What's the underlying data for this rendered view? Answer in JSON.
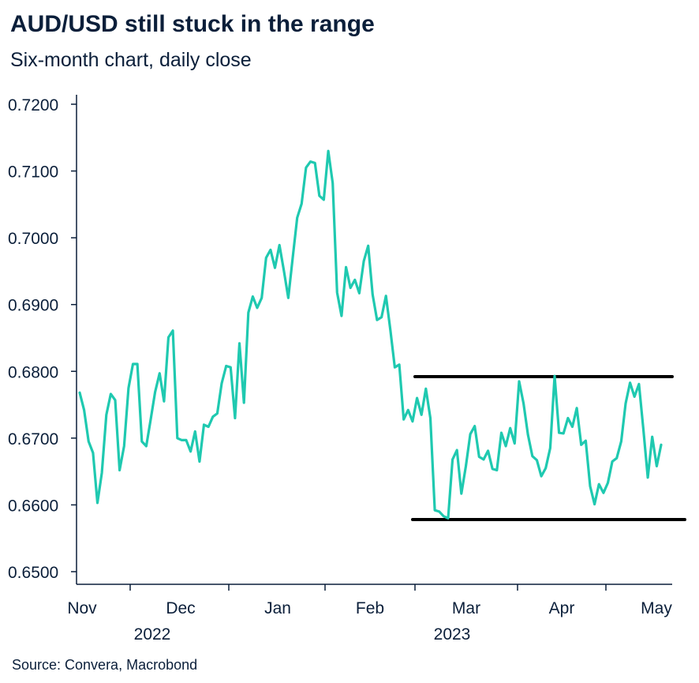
{
  "title": "AUD/USD still stuck in the range",
  "subtitle": "Six-month chart, daily close",
  "source": "Source: Convera, Macrobond",
  "chart_data": {
    "type": "line",
    "ylim": [
      0.65,
      0.72
    ],
    "y_ticks": [
      "0.7200",
      "0.7100",
      "0.7000",
      "0.6900",
      "0.6800",
      "0.6700",
      "0.6600",
      "0.6500"
    ],
    "y_tick_values": [
      0.72,
      0.71,
      0.7,
      0.69,
      0.68,
      0.67,
      0.66,
      0.65
    ],
    "x_month_labels": [
      "Nov",
      "Dec",
      "Jan",
      "Feb",
      "Mar",
      "Apr",
      "May"
    ],
    "x_year_labels": [
      "2022",
      "2023"
    ],
    "grid": false,
    "line_color": "#1fc9b0",
    "range_color": "#000000",
    "range_lines": [
      0.6792,
      0.6578
    ],
    "series": [
      {
        "values": [
          0.6768,
          0.6742,
          0.6695,
          0.6678,
          0.6603,
          0.6648,
          0.6735,
          0.6766,
          0.6757,
          0.6652,
          0.6688,
          0.6775,
          0.6811,
          0.6811,
          0.6695,
          0.6688,
          0.6728,
          0.6769,
          0.6797,
          0.6755,
          0.6851,
          0.6861,
          0.67,
          0.6697,
          0.6697,
          0.668,
          0.671,
          0.6665,
          0.672,
          0.6717,
          0.6732,
          0.6737,
          0.6782,
          0.6808,
          0.6806,
          0.673,
          0.6842,
          0.6753,
          0.6888,
          0.6912,
          0.6895,
          0.691,
          0.697,
          0.6982,
          0.6955,
          0.6989,
          0.6951,
          0.691,
          0.697,
          0.703,
          0.7051,
          0.7105,
          0.7114,
          0.7112,
          0.7063,
          0.7057,
          0.713,
          0.7082,
          0.6918,
          0.6883,
          0.6956,
          0.6925,
          0.6937,
          0.6917,
          0.6965,
          0.6988,
          0.6915,
          0.6877,
          0.6881,
          0.6913,
          0.6862,
          0.6806,
          0.681,
          0.6728,
          0.6742,
          0.6725,
          0.676,
          0.6735,
          0.6774,
          0.673,
          0.6592,
          0.659,
          0.6583,
          0.658,
          0.6668,
          0.6682,
          0.6617,
          0.6658,
          0.6706,
          0.6718,
          0.6672,
          0.6668,
          0.6681,
          0.6654,
          0.6652,
          0.6708,
          0.6688,
          0.6715,
          0.6692,
          0.6785,
          0.6752,
          0.6705,
          0.6673,
          0.6667,
          0.6643,
          0.6655,
          0.6685,
          0.6793,
          0.6708,
          0.6707,
          0.673,
          0.6717,
          0.6745,
          0.669,
          0.6696,
          0.6628,
          0.6601,
          0.6631,
          0.6618,
          0.6633,
          0.6665,
          0.667,
          0.6695,
          0.6752,
          0.6783,
          0.6762,
          0.6781,
          0.6713,
          0.6641,
          0.6702,
          0.6658,
          0.669
        ]
      }
    ]
  }
}
